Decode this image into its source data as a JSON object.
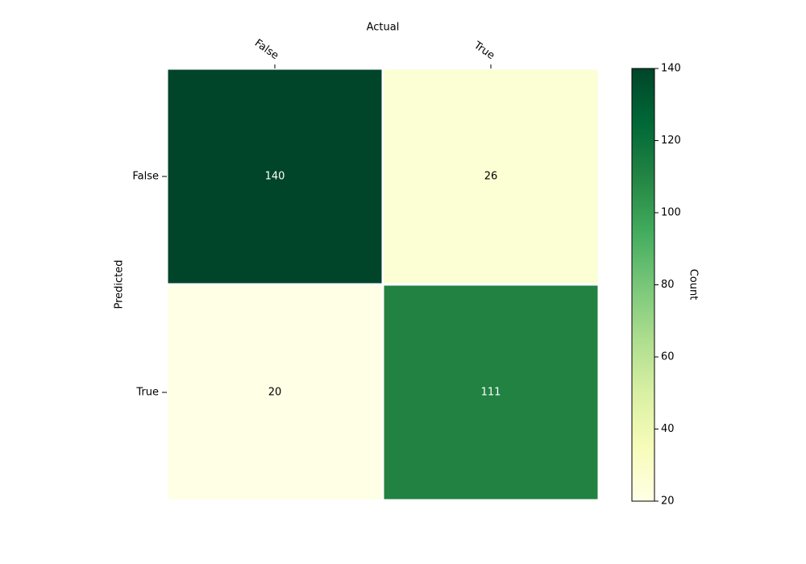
{
  "chart_data": {
    "type": "heatmap",
    "x_label": "Actual",
    "y_label": "Predicted",
    "x_categories": [
      "False",
      "True"
    ],
    "y_categories": [
      "False",
      "True"
    ],
    "values": [
      [
        140,
        26
      ],
      [
        20,
        111
      ]
    ],
    "colorbar_label": "Count",
    "clim": [
      20,
      140
    ],
    "cticks": [
      20,
      40,
      60,
      80,
      100,
      120,
      140
    ],
    "colormap": [
      "#ffffe5",
      "#f7fcb9",
      "#d9f0a3",
      "#addd8e",
      "#78c679",
      "#41ab5d",
      "#238443",
      "#006837",
      "#004529"
    ]
  }
}
